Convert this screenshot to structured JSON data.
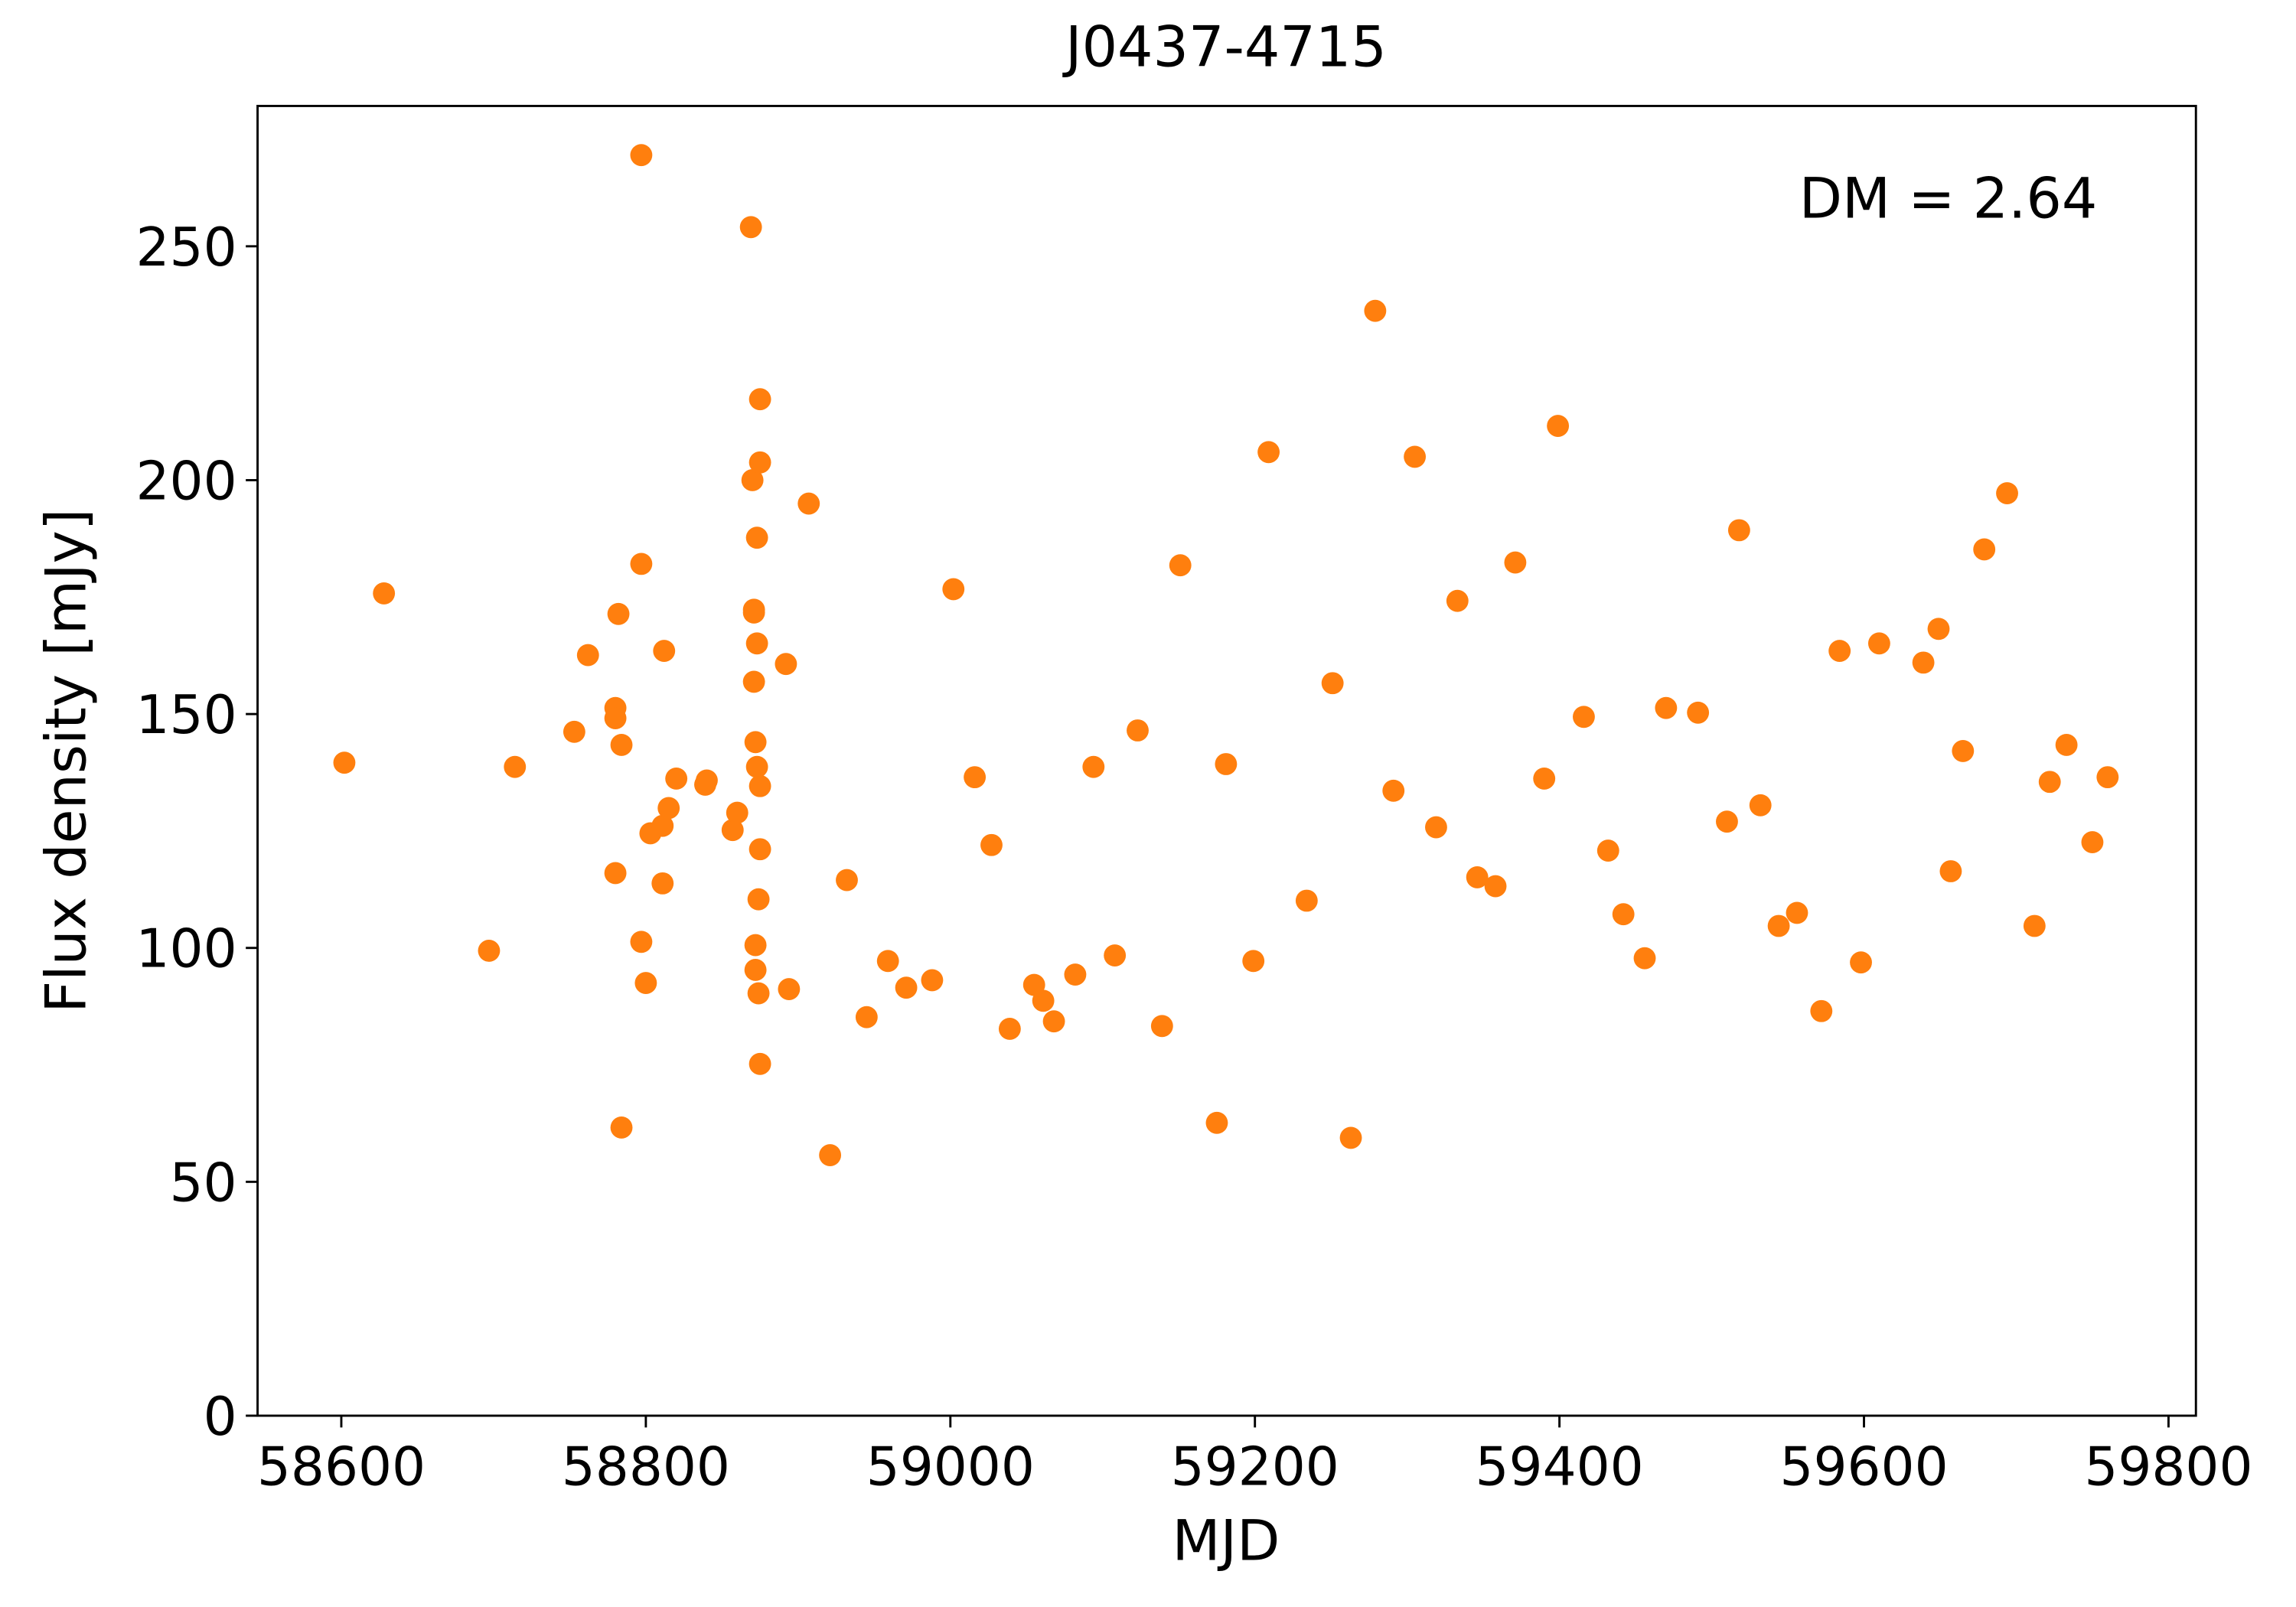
{
  "chart_data": {
    "type": "scatter",
    "title": "J0437-4715",
    "xlabel": "MJD",
    "ylabel": "Flux density [mJy]",
    "annotation": "DM = 2.64",
    "color": "#ff7f0e",
    "grid": false,
    "xlim": [
      58545,
      59818
    ],
    "xticks": [
      58600,
      58800,
      59000,
      59200,
      59400,
      59600,
      59800
    ],
    "ylim": [
      0,
      280
    ],
    "yticks": [
      0,
      50,
      100,
      150,
      200,
      250
    ],
    "x": [
      58602,
      58628,
      58697,
      58714,
      58753,
      58762,
      58780,
      58780,
      58780,
      58782,
      58784,
      58784,
      58797,
      58797,
      58797,
      58800,
      58803,
      58811,
      58812,
      58811,
      58815,
      58820,
      58839,
      58840,
      58857,
      58860,
      58869,
      58870,
      58871,
      58871,
      58871,
      58872,
      58872,
      58872,
      58873,
      58873,
      58873,
      58874,
      58874,
      58875,
      58875,
      58875,
      58875,
      58875,
      58892,
      58894,
      58907,
      58921,
      58932,
      58945,
      58959,
      58971,
      58988,
      59002,
      59016,
      59027,
      59039,
      59055,
      59061,
      59068,
      59082,
      59094,
      59108,
      59123,
      59139,
      59151,
      59175,
      59181,
      59199,
      59209,
      59234,
      59251,
      59263,
      59279,
      59291,
      59305,
      59319,
      59333,
      59346,
      59358,
      59371,
      59390,
      59399,
      59416,
      59432,
      59442,
      59456,
      59470,
      59491,
      59510,
      59518,
      59532,
      59544,
      59556,
      59572,
      59584,
      59598,
      59610,
      59639,
      59649,
      59657,
      59665,
      59679,
      59694,
      59712,
      59722,
      59733,
      59750,
      59760
    ],
    "values": [
      139.6,
      175.8,
      99.4,
      138.7,
      146.2,
      162.6,
      151.3,
      149.1,
      116.0,
      171.4,
      143.4,
      61.6,
      269.5,
      182.1,
      101.3,
      92.5,
      124.5,
      126.1,
      163.5,
      113.8,
      129.9,
      136.2,
      134.9,
      135.8,
      125.2,
      128.9,
      254.1,
      200.0,
      172.3,
      171.7,
      156.9,
      144.0,
      100.6,
      95.3,
      187.7,
      165.1,
      138.7,
      110.4,
      90.3,
      217.3,
      203.8,
      134.6,
      121.1,
      75.2,
      160.7,
      91.2,
      195.0,
      55.7,
      114.5,
      85.2,
      97.2,
      91.5,
      93.1,
      176.7,
      136.5,
      122.0,
      82.7,
      92.1,
      88.7,
      84.3,
      94.3,
      138.7,
      98.4,
      146.5,
      83.3,
      181.8,
      62.6,
      139.3,
      97.2,
      206.0,
      110.1,
      156.6,
      59.4,
      236.2,
      133.6,
      205.0,
      125.8,
      174.2,
      115.1,
      113.2,
      182.4,
      136.2,
      211.6,
      149.4,
      120.8,
      107.2,
      97.8,
      151.3,
      150.3,
      127.0,
      189.3,
      130.5,
      104.7,
      107.5,
      86.5,
      163.5,
      96.9,
      165.1,
      161.0,
      168.2,
      116.4,
      142.1,
      185.2,
      197.2,
      104.7,
      135.5,
      143.4,
      122.6,
      136.5
    ]
  }
}
